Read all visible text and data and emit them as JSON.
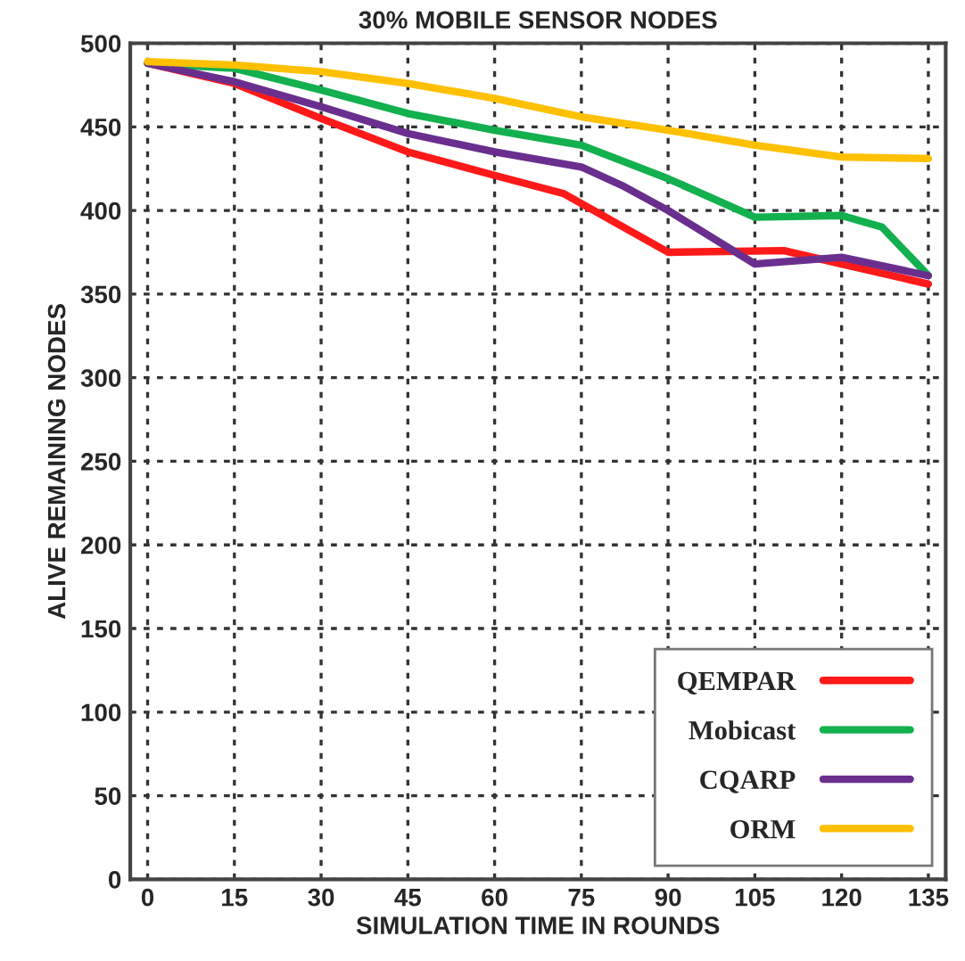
{
  "chart_data": {
    "type": "line",
    "title": "30% MOBILE SENSOR NODES",
    "xlabel": "SIMULATION TIME IN ROUNDS",
    "ylabel": "ALIVE REMAINING NODES",
    "xlim": [
      -3,
      138
    ],
    "xticks": [
      0,
      15,
      30,
      45,
      60,
      75,
      90,
      105,
      120,
      135
    ],
    "ylim": [
      0,
      500
    ],
    "yticks": [
      0,
      50,
      100,
      150,
      200,
      250,
      300,
      350,
      400,
      450,
      500
    ],
    "grid": true,
    "legend": "bottom right",
    "marker": "none",
    "line_style": "solid",
    "series": [
      {
        "name": "QEMPAR",
        "color": "#ff1a1a",
        "x": [
          0,
          15,
          30,
          45,
          60,
          72,
          90,
          110,
          120,
          135
        ],
        "values": [
          488,
          476,
          455,
          435,
          421,
          410,
          375,
          376,
          368,
          356
        ]
      },
      {
        "name": "Mobicast",
        "color": "#12b04e",
        "x": [
          0,
          15,
          30,
          45,
          60,
          75,
          90,
          105,
          120,
          127,
          135
        ],
        "values": [
          488,
          485,
          472,
          458,
          448,
          439,
          419,
          396,
          397,
          390,
          361
        ]
      },
      {
        "name": "CQARP",
        "color": "#6a2f8e",
        "x": [
          0,
          15,
          30,
          45,
          60,
          75,
          82,
          90,
          105,
          120,
          135
        ],
        "values": [
          488,
          477,
          462,
          446,
          435,
          426,
          415,
          400,
          368,
          372,
          361
        ]
      },
      {
        "name": "ORM",
        "color": "#ffc000",
        "x": [
          0,
          15,
          30,
          45,
          60,
          75,
          90,
          105,
          120,
          135
        ],
        "values": [
          489,
          487,
          483,
          476,
          467,
          456,
          448,
          439,
          432,
          431
        ]
      }
    ]
  }
}
